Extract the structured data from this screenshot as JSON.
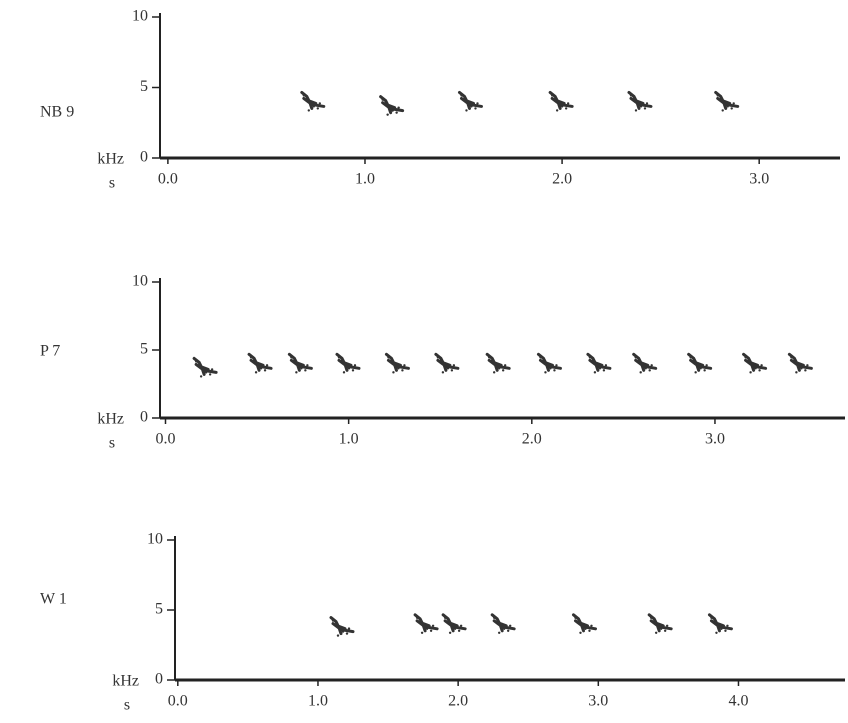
{
  "chart_data": [
    {
      "type": "scatter",
      "label": "NB 9",
      "y_label": "kHz",
      "x_label": "s",
      "x": [
        0.72,
        1.12,
        1.52,
        1.98,
        2.38,
        2.82
      ],
      "values": [
        3.8,
        3.5,
        3.8,
        3.8,
        3.8,
        3.8
      ],
      "color": "#333333",
      "xlim": [
        -0.04,
        3.41
      ],
      "ylim": [
        0,
        10
      ],
      "yticks": [
        0,
        5,
        10
      ],
      "xticks": [
        {
          "value": 0,
          "label": "0.0"
        },
        {
          "value": 1,
          "label": "1.0"
        },
        {
          "value": 2,
          "label": "2.0"
        },
        {
          "value": 3,
          "label": "3.0"
        }
      ]
    },
    {
      "type": "scatter",
      "label": "P 7",
      "y_label": "kHz",
      "x_label": "s",
      "x": [
        0.2,
        0.5,
        0.72,
        0.98,
        1.25,
        1.52,
        1.8,
        2.08,
        2.35,
        2.6,
        2.9,
        3.2,
        3.45
      ],
      "values": [
        3.5,
        3.8,
        3.8,
        3.8,
        3.8,
        3.8,
        3.8,
        3.8,
        3.8,
        3.8,
        3.8,
        3.8,
        3.8
      ],
      "color": "#333333",
      "xlim": [
        -0.03,
        3.71
      ],
      "ylim": [
        0,
        10
      ],
      "yticks": [
        0,
        5,
        10
      ],
      "xticks": [
        {
          "value": 0,
          "label": "0.0"
        },
        {
          "value": 1,
          "label": "1.0"
        },
        {
          "value": 2,
          "label": "2.0"
        },
        {
          "value": 3,
          "label": "3.0"
        }
      ]
    },
    {
      "type": "scatter",
      "label": "W 1",
      "y_label": "kHz",
      "x_label": "s",
      "x": [
        1.15,
        1.75,
        1.95,
        2.3,
        2.88,
        3.42,
        3.85
      ],
      "values": [
        3.6,
        3.8,
        3.8,
        3.8,
        3.8,
        3.8,
        3.8
      ],
      "color": "#333333",
      "xlim": [
        -0.02,
        4.76
      ],
      "ylim": [
        0,
        10
      ],
      "yticks": [
        0,
        5,
        10
      ],
      "xticks": [
        {
          "value": 0,
          "label": "0.0"
        },
        {
          "value": 1,
          "label": "1.0"
        },
        {
          "value": 2,
          "label": "2.0"
        },
        {
          "value": 3,
          "label": "3.0"
        },
        {
          "value": 4,
          "label": "4.0"
        }
      ]
    }
  ]
}
